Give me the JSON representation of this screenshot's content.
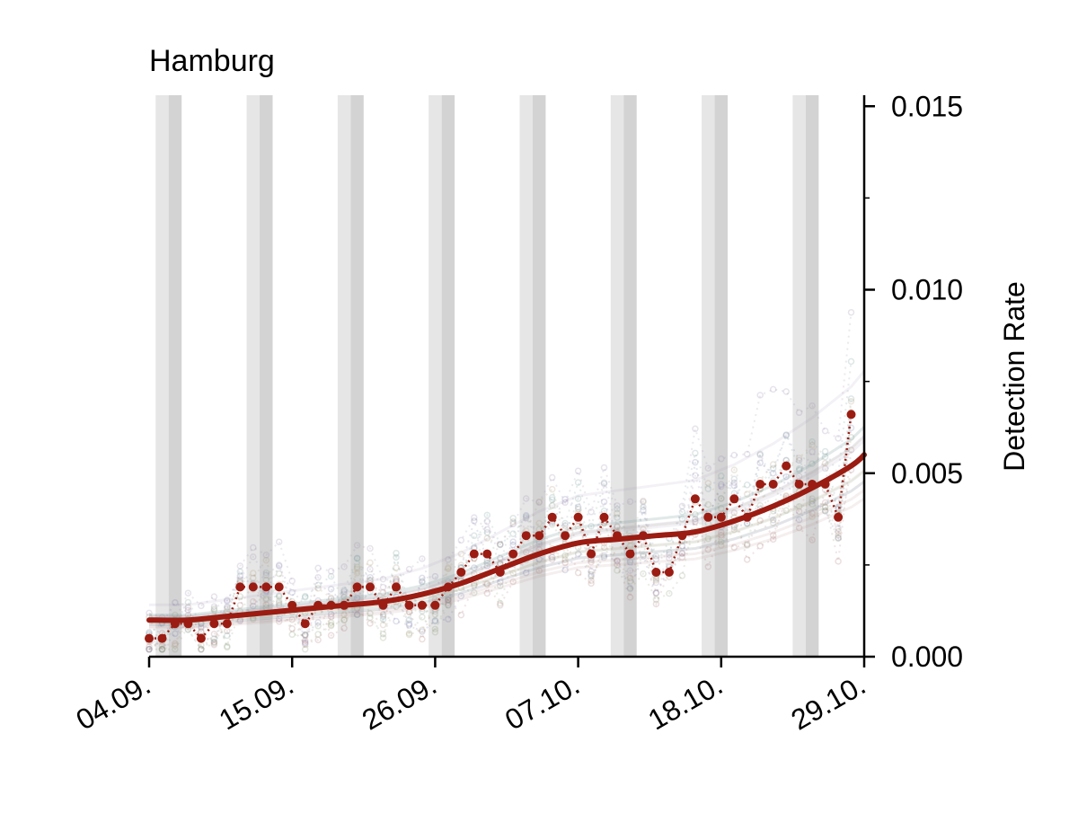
{
  "chart_data": {
    "type": "line",
    "title": "Hamburg",
    "xlabel": "",
    "ylabel": "Detection Rate",
    "y_axis_side": "right",
    "ylim": [
      0,
      0.0153
    ],
    "xlim": [
      "2020-09-04",
      "2020-10-29"
    ],
    "x_tick_labels": [
      "04.09.",
      "15.09.",
      "26.09.",
      "07.10.",
      "18.10.",
      "29.10."
    ],
    "y_tick_labels": [
      "0.000",
      "0.005",
      "0.010",
      "0.015"
    ],
    "y_ticks": [
      0,
      0.005,
      0.01,
      0.015
    ],
    "grid": false,
    "weekend_shading": {
      "saturday_color": "#e6e6e6",
      "sunday_color": "#d3d3d3",
      "weekends": [
        [
          "2020-09-05",
          "2020-09-06"
        ],
        [
          "2020-09-12",
          "2020-09-13"
        ],
        [
          "2020-09-19",
          "2020-09-20"
        ],
        [
          "2020-09-26",
          "2020-09-27"
        ],
        [
          "2020-10-03",
          "2020-10-04"
        ],
        [
          "2020-10-10",
          "2020-10-11"
        ],
        [
          "2020-10-17",
          "2020-10-18"
        ],
        [
          "2020-10-24",
          "2020-10-25"
        ]
      ]
    },
    "series": [
      {
        "role": "daily",
        "color": "#9b1c12",
        "x": [
          "2020-09-04",
          "2020-09-05",
          "2020-09-06",
          "2020-09-07",
          "2020-09-08",
          "2020-09-09",
          "2020-09-10",
          "2020-09-11",
          "2020-09-12",
          "2020-09-13",
          "2020-09-14",
          "2020-09-15",
          "2020-09-16",
          "2020-09-17",
          "2020-09-18",
          "2020-09-19",
          "2020-09-20",
          "2020-09-21",
          "2020-09-22",
          "2020-09-23",
          "2020-09-24",
          "2020-09-25",
          "2020-09-26",
          "2020-09-27",
          "2020-09-28",
          "2020-09-29",
          "2020-09-30",
          "2020-10-01",
          "2020-10-02",
          "2020-10-03",
          "2020-10-04",
          "2020-10-05",
          "2020-10-06",
          "2020-10-07",
          "2020-10-08",
          "2020-10-09",
          "2020-10-10",
          "2020-10-11",
          "2020-10-12",
          "2020-10-13",
          "2020-10-14",
          "2020-10-15",
          "2020-10-16",
          "2020-10-17",
          "2020-10-18",
          "2020-10-19",
          "2020-10-20",
          "2020-10-21",
          "2020-10-22",
          "2020-10-23",
          "2020-10-24",
          "2020-10-25",
          "2020-10-26",
          "2020-10-27",
          "2020-10-28"
        ],
        "values": [
          0.0005,
          0.0005,
          0.0009,
          0.0009,
          0.0005,
          0.0009,
          0.0009,
          0.0019,
          0.0019,
          0.0019,
          0.0019,
          0.0014,
          0.0009,
          0.0014,
          0.0014,
          0.0014,
          0.0019,
          0.0019,
          0.0014,
          0.0019,
          0.0014,
          0.0014,
          0.0014,
          0.0019,
          0.0023,
          0.0028,
          0.0028,
          0.0023,
          0.0028,
          0.0033,
          0.0033,
          0.0038,
          0.0033,
          0.0038,
          0.0028,
          0.0038,
          0.0033,
          0.0028,
          0.0033,
          0.0023,
          0.0023,
          0.0033,
          0.0043,
          0.0038,
          0.0038,
          0.0043,
          0.0038,
          0.0047,
          0.0047,
          0.0052,
          0.0047,
          0.0047,
          0.0047,
          0.0038,
          0.0066
        ]
      },
      {
        "role": "smoothed",
        "color": "#9b1c12",
        "x": [
          "2020-09-04",
          "2020-09-07",
          "2020-09-10",
          "2020-09-13",
          "2020-09-16",
          "2020-09-19",
          "2020-09-22",
          "2020-09-25",
          "2020-09-28",
          "2020-10-01",
          "2020-10-04",
          "2020-10-07",
          "2020-10-10",
          "2020-10-13",
          "2020-10-16",
          "2020-10-19",
          "2020-10-22",
          "2020-10-25",
          "2020-10-28",
          "2020-10-29"
        ],
        "values": [
          0.001,
          0.001,
          0.0011,
          0.0012,
          0.0013,
          0.0014,
          0.0015,
          0.0017,
          0.002,
          0.0024,
          0.0028,
          0.0031,
          0.0032,
          0.0033,
          0.0034,
          0.0037,
          0.0041,
          0.0046,
          0.0052,
          0.0055
        ]
      },
      {
        "role": "background",
        "colors": [
          "#7f7fb0",
          "#b07f7f",
          "#8fa07f",
          "#a08fb0",
          "#b0a07f",
          "#7fa0a0"
        ],
        "opacity": 0.25,
        "count": 12
      }
    ]
  }
}
